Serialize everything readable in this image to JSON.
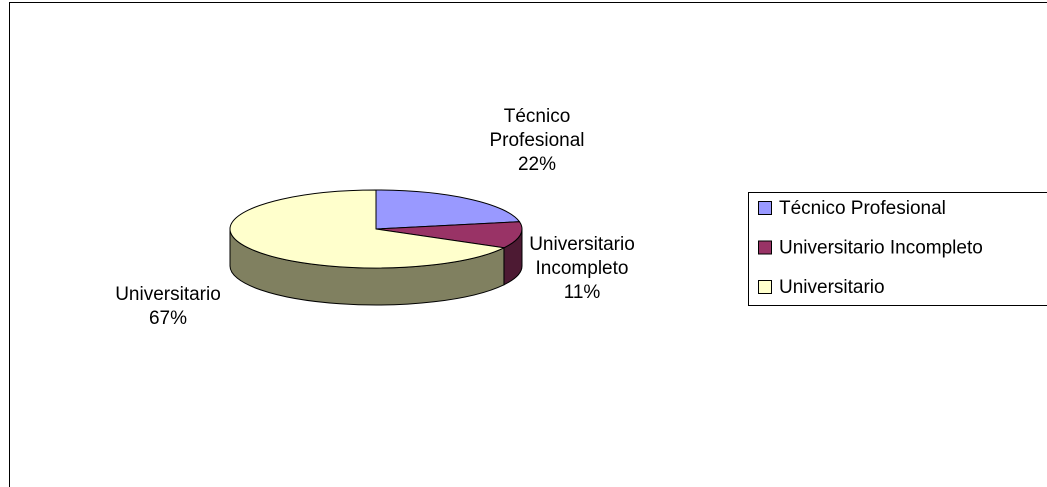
{
  "chart_data": {
    "type": "pie",
    "categories": [
      "Técnico Profesional",
      "Universitario Incompleto",
      "Universitario"
    ],
    "values": [
      22,
      11,
      67
    ],
    "value_labels": [
      "22%",
      "11%",
      "67%"
    ],
    "colors": [
      "#9999ff",
      "#993366",
      "#ffffcc"
    ],
    "side_colors": [
      "#4d4d80",
      "#4d1a33",
      "#808060"
    ],
    "legend": "right"
  }
}
